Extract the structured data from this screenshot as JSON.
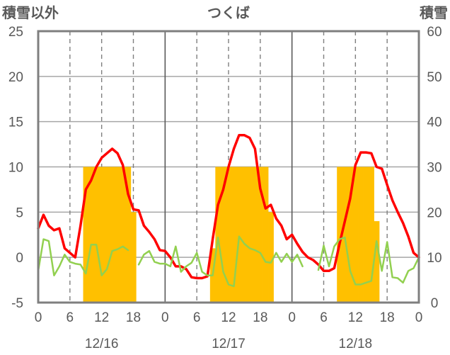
{
  "chart_data": {
    "type": "bar+line",
    "title": "つくば",
    "left_axis_label": "積雪以外",
    "right_axis_label": "積雪",
    "left_ylim": [
      -5,
      25
    ],
    "left_ticks": [
      "25",
      "20",
      "15",
      "10",
      "5",
      "0",
      "-5"
    ],
    "right_ylim": [
      0,
      60
    ],
    "right_ticks": [
      "60",
      "50",
      "40",
      "30",
      "20",
      "10",
      "0"
    ],
    "x_ticks": [
      "0",
      "6",
      "12",
      "18",
      "0",
      "6",
      "12",
      "18",
      "0",
      "6",
      "12",
      "18",
      "0"
    ],
    "dates": [
      "12/16",
      "12/17",
      "12/18"
    ],
    "grid": "vertical dashed every 6h, solid at day boundaries; horizontal solid gridlines",
    "series": [
      {
        "kind": "bar",
        "axis": "right",
        "color": "#FFC000",
        "points": [
          [
            9,
            30
          ],
          [
            10,
            30
          ],
          [
            11,
            30
          ],
          [
            12,
            30
          ],
          [
            13,
            30
          ],
          [
            14,
            30
          ],
          [
            15,
            30
          ],
          [
            16,
            30
          ],
          [
            17,
            30
          ],
          [
            18,
            20
          ],
          [
            33,
            12
          ],
          [
            34,
            30
          ],
          [
            35,
            30
          ],
          [
            36,
            30
          ],
          [
            37,
            30
          ],
          [
            38,
            30
          ],
          [
            39,
            30
          ],
          [
            40,
            30
          ],
          [
            41,
            30
          ],
          [
            42,
            30
          ],
          [
            43,
            30
          ],
          [
            44,
            20
          ],
          [
            57,
            30
          ],
          [
            58,
            30
          ],
          [
            59,
            30
          ],
          [
            60,
            30
          ],
          [
            61,
            30
          ],
          [
            62,
            30
          ],
          [
            63,
            30
          ],
          [
            64,
            18
          ]
        ]
      },
      {
        "kind": "line",
        "axis": "left",
        "color": "#FF0000",
        "points": [
          [
            0,
            3.2
          ],
          [
            1,
            4.7
          ],
          [
            2,
            3.5
          ],
          [
            3,
            3.0
          ],
          [
            4,
            3.2
          ],
          [
            5,
            1.0
          ],
          [
            6,
            0.5
          ],
          [
            7,
            0.0
          ],
          [
            8,
            3.5
          ],
          [
            9,
            7.5
          ],
          [
            10,
            8.5
          ],
          [
            11,
            10.0
          ],
          [
            12,
            11.0
          ],
          [
            13,
            11.5
          ],
          [
            14,
            12.0
          ],
          [
            15,
            11.5
          ],
          [
            16,
            10.2
          ],
          [
            17,
            7.0
          ],
          [
            18,
            5.3
          ],
          [
            19,
            5.2
          ],
          [
            20,
            3.5
          ],
          [
            21,
            2.8
          ],
          [
            22,
            2.0
          ],
          [
            23,
            0.8
          ],
          [
            24,
            0.7
          ],
          [
            25,
            0.0
          ],
          [
            26,
            -1.0
          ],
          [
            27,
            -1.0
          ],
          [
            28,
            -1.3
          ],
          [
            29,
            -2.2
          ],
          [
            30,
            -2.3
          ],
          [
            31,
            -2.3
          ],
          [
            32,
            -2.1
          ],
          [
            33,
            2.0
          ],
          [
            34,
            5.8
          ],
          [
            35,
            7.5
          ],
          [
            36,
            10.0
          ],
          [
            37,
            12.0
          ],
          [
            38,
            13.5
          ],
          [
            39,
            13.5
          ],
          [
            40,
            13.2
          ],
          [
            41,
            12.0
          ],
          [
            42,
            7.6
          ],
          [
            43,
            5.4
          ],
          [
            44,
            5.8
          ],
          [
            45,
            4.3
          ],
          [
            46,
            3.5
          ],
          [
            47,
            2.0
          ],
          [
            48,
            2.5
          ],
          [
            49,
            1.5
          ],
          [
            50,
            0.6
          ],
          [
            51,
            0.0
          ],
          [
            52,
            -0.3
          ],
          [
            53,
            -0.8
          ],
          [
            54,
            -1.5
          ],
          [
            55,
            -1.5
          ],
          [
            56,
            -1.2
          ],
          [
            57,
            1.5
          ],
          [
            58,
            4.0
          ],
          [
            59,
            6.5
          ],
          [
            60,
            10.2
          ],
          [
            61,
            11.6
          ],
          [
            62,
            11.6
          ],
          [
            63,
            11.5
          ],
          [
            64,
            10.0
          ],
          [
            65,
            9.8
          ],
          [
            66,
            8.0
          ],
          [
            67,
            6.3
          ],
          [
            68,
            5.0
          ],
          [
            69,
            3.8
          ],
          [
            70,
            2.3
          ],
          [
            71,
            0.5
          ],
          [
            72,
            0.0
          ]
        ]
      },
      {
        "kind": "line",
        "axis": "left",
        "color": "#92D050",
        "points": [
          [
            0,
            -1.5
          ],
          [
            1,
            2.0
          ],
          [
            2,
            1.8
          ],
          [
            3,
            -2.0
          ],
          [
            4,
            -1.0
          ],
          [
            5,
            0.3
          ],
          [
            6,
            -0.5
          ],
          [
            7,
            -0.7
          ],
          [
            8,
            -0.8
          ],
          [
            9,
            -1.8
          ],
          [
            10,
            1.4
          ],
          [
            11,
            1.4
          ],
          [
            12,
            -2.0
          ],
          [
            13,
            -1.3
          ],
          [
            14,
            0.7
          ],
          [
            15,
            0.9
          ],
          [
            16,
            1.2
          ],
          [
            17,
            0.8
          ],
          null,
          [
            19,
            -0.8
          ],
          [
            20,
            0.3
          ],
          [
            21,
            0.7
          ],
          [
            22,
            -0.5
          ],
          [
            23,
            -0.7
          ],
          [
            24,
            -0.7
          ],
          [
            25,
            -1.0
          ],
          [
            26,
            1.2
          ],
          [
            27,
            -1.6
          ],
          [
            28,
            -1.0
          ],
          [
            29,
            -0.6
          ],
          [
            30,
            0.5
          ],
          [
            31,
            -1.6
          ],
          [
            32,
            -2.0
          ],
          [
            33,
            -2.0
          ],
          [
            34,
            2.2
          ],
          [
            35,
            -1.6
          ],
          [
            36,
            -3.0
          ],
          [
            37,
            -3.2
          ],
          [
            38,
            2.3
          ],
          [
            39,
            1.5
          ],
          [
            40,
            1.0
          ],
          [
            41,
            0.8
          ],
          [
            42,
            0.5
          ],
          [
            43,
            -0.5
          ],
          [
            44,
            -0.6
          ],
          [
            45,
            0.5
          ],
          [
            46,
            -0.5
          ],
          [
            47,
            0.4
          ],
          [
            48,
            -0.5
          ],
          [
            49,
            0.3
          ],
          [
            50,
            -1.0
          ],
          null,
          [
            53,
            -1.4
          ],
          [
            54,
            1.3
          ],
          [
            55,
            -1.0
          ],
          [
            56,
            1.2
          ],
          [
            57,
            2.0
          ],
          [
            58,
            2.2
          ],
          [
            59,
            -1.5
          ],
          [
            60,
            -3.0
          ],
          [
            61,
            -3.0
          ],
          [
            62,
            -2.8
          ],
          [
            63,
            -2.6
          ],
          [
            64,
            1.8
          ],
          [
            65,
            -1.5
          ],
          [
            66,
            1.7
          ],
          [
            67,
            -2.2
          ],
          [
            68,
            -2.3
          ],
          [
            69,
            -2.8
          ],
          [
            70,
            -1.5
          ],
          [
            71,
            -1.2
          ],
          [
            72,
            0.0
          ]
        ]
      },
      {
        "kind": "line",
        "axis": "left",
        "color": "#7030A0",
        "points": [
          [
            0,
            -5
          ],
          [
            72,
            -5
          ]
        ]
      }
    ]
  }
}
